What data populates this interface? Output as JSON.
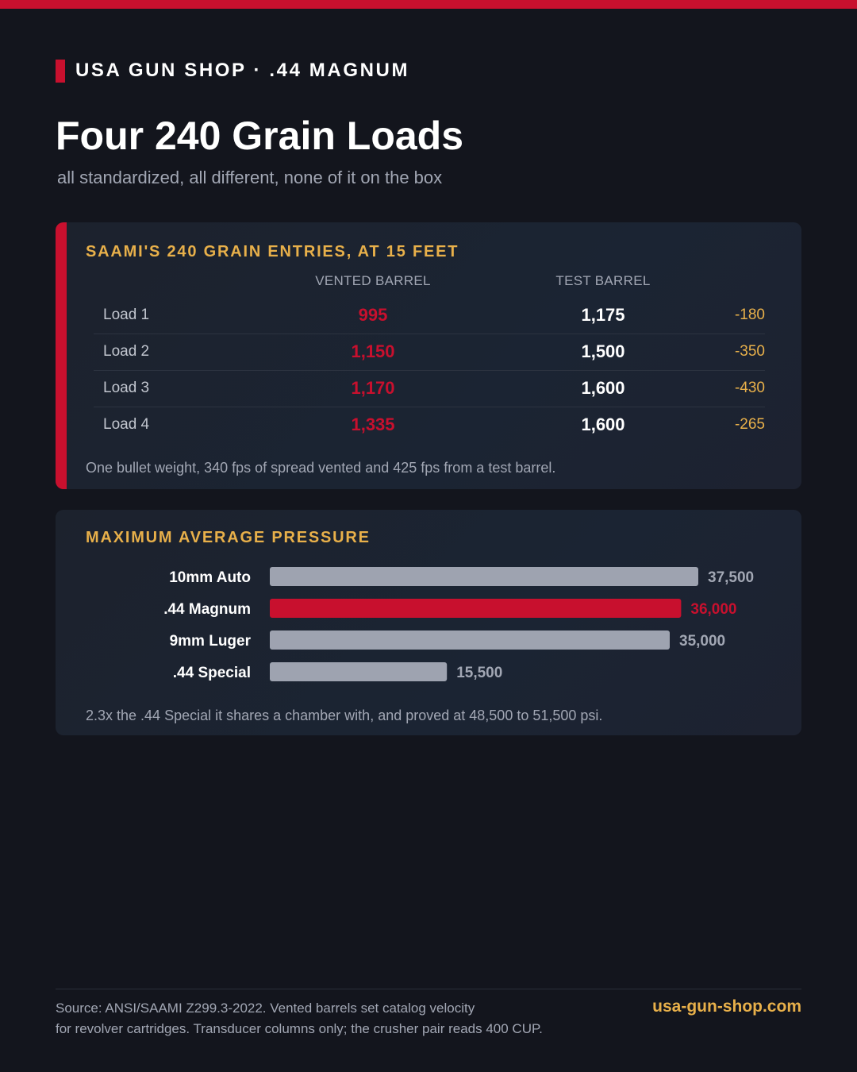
{
  "header": {
    "kicker": "USA GUN SHOP · .44 MAGNUM",
    "title": "Four 240 Grain Loads",
    "subtitle": "all standardized, all different, none of it on the box"
  },
  "velocity_card": {
    "heading": "SAAMI'S 240 GRAIN ENTRIES, AT 15 FEET",
    "col_vented": "VENTED BARREL",
    "col_test": "TEST BARREL",
    "rows": [
      {
        "label": "Load 1",
        "vented": "995",
        "test": "1,175",
        "diff": "-180"
      },
      {
        "label": "Load 2",
        "vented": "1,150",
        "test": "1,500",
        "diff": "-350"
      },
      {
        "label": "Load 3",
        "vented": "1,170",
        "test": "1,600",
        "diff": "-430"
      },
      {
        "label": "Load 4",
        "vented": "1,335",
        "test": "1,600",
        "diff": "-265"
      }
    ],
    "note": "One bullet weight, 340 fps of spread vented and 425 fps from a test barrel."
  },
  "chart_data": {
    "type": "bar",
    "orientation": "horizontal",
    "title": "MAXIMUM AVERAGE PRESSURE",
    "categories": [
      "10mm Auto",
      ".44 Magnum",
      "9mm Luger",
      ".44 Special"
    ],
    "values": [
      37500,
      36000,
      35000,
      15500
    ],
    "value_labels": [
      "37,500",
      "36,000",
      "35,000",
      "15,500"
    ],
    "highlight": ".44 Magnum",
    "xlim": [
      0,
      37500
    ],
    "grid": false,
    "colors": {
      "bar": "#9ea3b0",
      "highlight": "#c8102e",
      "label": "#ffffff",
      "value": "#a2a7b4"
    }
  },
  "pressure_note": "2.3x the .44 Special it shares a chamber with, and proved at 48,500 to 51,500 psi.",
  "footer": {
    "source_line1": "Source: ANSI/SAAMI Z299.3-2022. Vented barrels set catalog velocity",
    "source_line2": "for revolver cartridges. Transducer columns only; the crusher pair reads 400 CUP.",
    "site": "usa-gun-shop.com"
  },
  "colors": {
    "accent": "#c8102e",
    "gold": "#e8b04a",
    "background": "#13151d"
  }
}
